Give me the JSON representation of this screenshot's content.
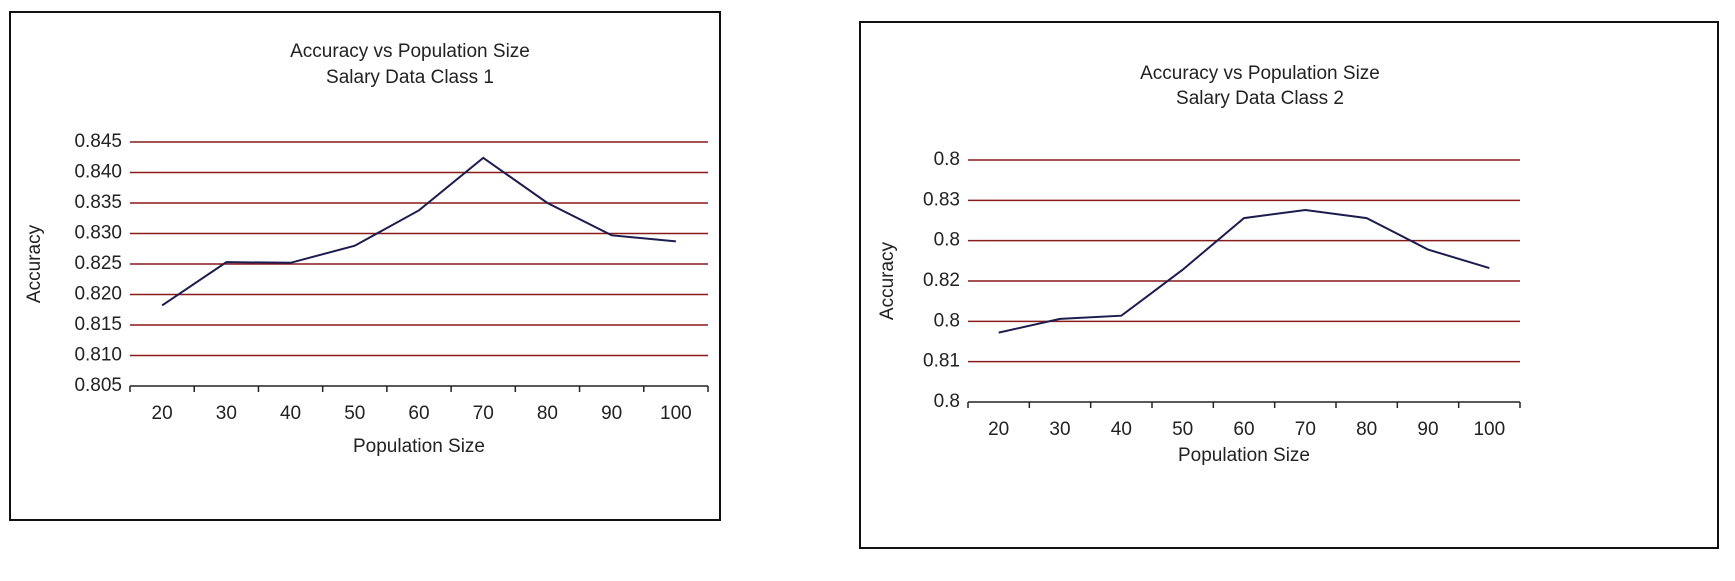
{
  "chart_data": [
    {
      "type": "line",
      "title": "Accuracy vs Population Size",
      "subtitle": "Salary Data Class 1",
      "x_label": "Population Size",
      "y_label": "Accuracy",
      "categories": [
        20,
        30,
        40,
        50,
        60,
        70,
        80,
        90,
        100
      ],
      "series": [
        {
          "name": "Accuracy",
          "color": "#1c1c4e",
          "values": [
            0.8182,
            0.8253,
            0.8252,
            0.828,
            0.8338,
            0.8424,
            0.835,
            0.8297,
            0.8287
          ]
        }
      ],
      "ylim": [
        0.805,
        0.845
      ],
      "yticks": [
        0.805,
        {
          "value": 0.81,
          "label": "0.810"
        },
        0.815,
        {
          "value": 0.82,
          "label": "0.820"
        },
        0.825,
        {
          "value": 0.83,
          "label": "0.830"
        },
        0.835,
        {
          "value": 0.84,
          "label": "0.840"
        },
        0.845
      ],
      "grid": true,
      "grid_color": "#8b1a1a"
    },
    {
      "type": "line",
      "title": "Accuracy vs Population Size",
      "subtitle": "Salary Data Class 2",
      "x_label": "Population Size",
      "y_label": "Accuracy",
      "categories": [
        20,
        30,
        40,
        50,
        60,
        70,
        80,
        90,
        100
      ],
      "series": [
        {
          "name": "Accuracy",
          "color": "#1c1c4e",
          "values": [
            0.8136,
            0.8153,
            0.8157,
            0.8214,
            0.8278,
            0.8288,
            0.8278,
            0.8239,
            0.8216
          ]
        }
      ],
      "ylim": [
        0.805,
        0.835
      ],
      "yticks": [
        {
          "value": 0.805,
          "label": "0.8"
        },
        {
          "value": 0.81,
          "label": "0.81"
        },
        {
          "value": 0.815,
          "label": "0.8"
        },
        {
          "value": 0.82,
          "label": "0.82"
        },
        {
          "value": 0.825,
          "label": "0.8"
        },
        {
          "value": 0.83,
          "label": "0.83"
        },
        {
          "value": 0.835,
          "label": "0.8"
        }
      ],
      "grid": true,
      "grid_color": "#8b1a1a"
    }
  ]
}
